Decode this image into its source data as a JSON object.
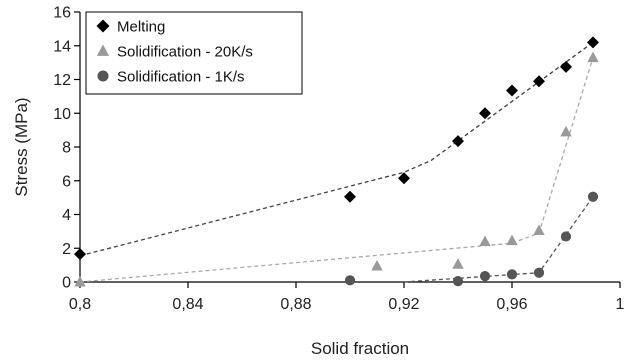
{
  "chart_data": {
    "type": "scatter",
    "title": "",
    "xlabel": "Solid fraction",
    "ylabel": "Stress (MPa)",
    "xlim": [
      0.8,
      1.0
    ],
    "ylim": [
      0,
      16
    ],
    "xticks": [
      0.8,
      0.84,
      0.88,
      0.92,
      0.96,
      1.0
    ],
    "xtick_labels": [
      "0,8",
      "0,84",
      "0,88",
      "0,92",
      "0,96",
      "1"
    ],
    "yticks": [
      0,
      2,
      4,
      6,
      8,
      10,
      12,
      14,
      16
    ],
    "ytick_labels": [
      "0",
      "2",
      "4",
      "6",
      "8",
      "10",
      "12",
      "14",
      "16"
    ],
    "grid": false,
    "legend_position": "top-left",
    "series": [
      {
        "name": "Melting",
        "marker": "diamond",
        "color": "#000000",
        "line_color": "#444444",
        "points": [
          {
            "x": 0.8,
            "y": 1.65
          },
          {
            "x": 0.9,
            "y": 5.05
          },
          {
            "x": 0.92,
            "y": 6.15
          },
          {
            "x": 0.94,
            "y": 8.35
          },
          {
            "x": 0.95,
            "y": 10.0
          },
          {
            "x": 0.96,
            "y": 11.35
          },
          {
            "x": 0.97,
            "y": 11.9
          },
          {
            "x": 0.98,
            "y": 12.75
          },
          {
            "x": 0.99,
            "y": 14.2
          }
        ],
        "trend": [
          {
            "x": 0.8,
            "y": 1.55
          },
          {
            "x": 0.92,
            "y": 6.5
          },
          {
            "x": 0.93,
            "y": 7.2
          },
          {
            "x": 0.99,
            "y": 14.2
          }
        ]
      },
      {
        "name": "Solidification - 20K/s",
        "marker": "triangle",
        "color": "#9a9a9a",
        "line_color": "#aaaaaa",
        "points": [
          {
            "x": 0.8,
            "y": 0.0
          },
          {
            "x": 0.91,
            "y": 0.95
          },
          {
            "x": 0.94,
            "y": 1.05
          },
          {
            "x": 0.95,
            "y": 2.4
          },
          {
            "x": 0.96,
            "y": 2.45
          },
          {
            "x": 0.97,
            "y": 3.05
          },
          {
            "x": 0.98,
            "y": 8.9
          },
          {
            "x": 0.99,
            "y": 13.3
          }
        ],
        "trend": [
          {
            "x": 0.8,
            "y": 0.0
          },
          {
            "x": 0.96,
            "y": 2.3
          },
          {
            "x": 0.97,
            "y": 2.9
          },
          {
            "x": 0.99,
            "y": 13.3
          }
        ]
      },
      {
        "name": "Solidification - 1K/s",
        "marker": "circle",
        "color": "#555555",
        "line_color": "#555555",
        "points": [
          {
            "x": 0.9,
            "y": 0.1
          },
          {
            "x": 0.94,
            "y": 0.05
          },
          {
            "x": 0.95,
            "y": 0.35
          },
          {
            "x": 0.96,
            "y": 0.45
          },
          {
            "x": 0.97,
            "y": 0.55
          },
          {
            "x": 0.98,
            "y": 2.7
          },
          {
            "x": 0.99,
            "y": 5.05
          }
        ],
        "trend": [
          {
            "x": 0.92,
            "y": 0.0
          },
          {
            "x": 0.97,
            "y": 0.55
          },
          {
            "x": 0.99,
            "y": 5.05
          }
        ]
      }
    ]
  }
}
